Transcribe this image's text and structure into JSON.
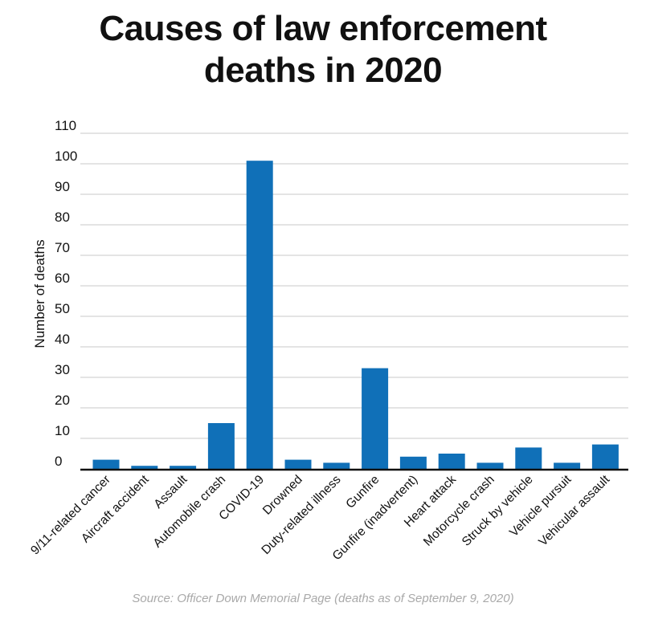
{
  "title_line1": "Causes of law enforcement",
  "title_line2": "deaths in 2020",
  "source": "Source: Officer Down Memorial Page (deaths as of September 9, 2020)",
  "colors": {
    "bar": "#1070b8",
    "grid": "#c8c8c8",
    "axis": "#111111"
  },
  "chart_data": {
    "type": "bar",
    "title": "Causes of law enforcement deaths in 2020",
    "xlabel": "",
    "ylabel": "Number of deaths",
    "ylim": [
      0,
      110
    ],
    "yticks": [
      0,
      10,
      20,
      30,
      40,
      50,
      60,
      70,
      80,
      90,
      100,
      110
    ],
    "grid": true,
    "categories": [
      "9/11-related cancer",
      "Aircraft accident",
      "Assault",
      "Automobile crash",
      "COVID-19",
      "Drowned",
      "Duty-related illness",
      "Gunfire",
      "Gunfire (inadvertent)",
      "Heart attack",
      "Motorcycle crash",
      "Struck by vehicle",
      "Vehicle pursuit",
      "Vehicular assault"
    ],
    "values": [
      3,
      1,
      1,
      15,
      101,
      3,
      2,
      33,
      4,
      5,
      2,
      7,
      2,
      8
    ]
  }
}
